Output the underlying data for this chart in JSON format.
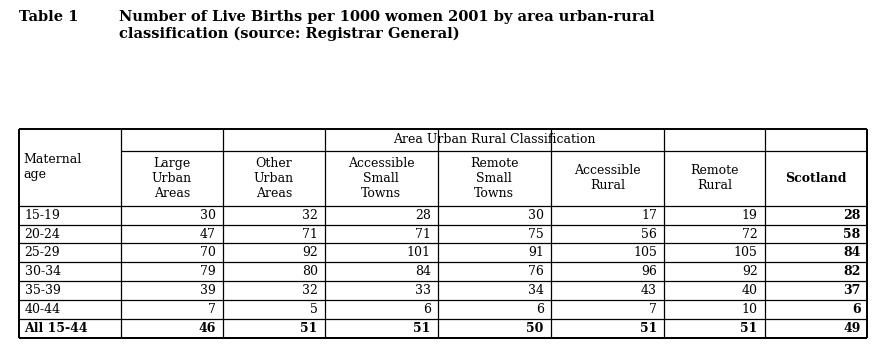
{
  "title_label": "Table 1",
  "title_text": "Number of Live Births per 1000 women 2001 by area urban-rural\nclassification (source: Registrar General)",
  "span_header": "Area Urban Rural Classification",
  "col_headers": [
    "Large\nUrban\nAreas",
    "Other\nUrban\nAreas",
    "Accessible\nSmall\nTowns",
    "Remote\nSmall\nTowns",
    "Accessible\nRural",
    "Remote\nRural",
    "Scotland"
  ],
  "row_label_header": "Maternal\nage",
  "row_labels": [
    "15-19",
    "20-24",
    "25-29",
    "30-34",
    "35-39",
    "40-44",
    "All 15-44"
  ],
  "data": [
    [
      30,
      32,
      28,
      30,
      17,
      19,
      28
    ],
    [
      47,
      71,
      71,
      75,
      56,
      72,
      58
    ],
    [
      70,
      92,
      101,
      91,
      105,
      105,
      84
    ],
    [
      79,
      80,
      84,
      76,
      96,
      92,
      82
    ],
    [
      39,
      32,
      33,
      34,
      43,
      40,
      37
    ],
    [
      7,
      5,
      6,
      6,
      7,
      10,
      6
    ],
    [
      46,
      51,
      51,
      50,
      51,
      51,
      49
    ]
  ],
  "background_color": "#ffffff",
  "title_fontsize": 10.5,
  "header_fontsize": 9,
  "data_fontsize": 9
}
